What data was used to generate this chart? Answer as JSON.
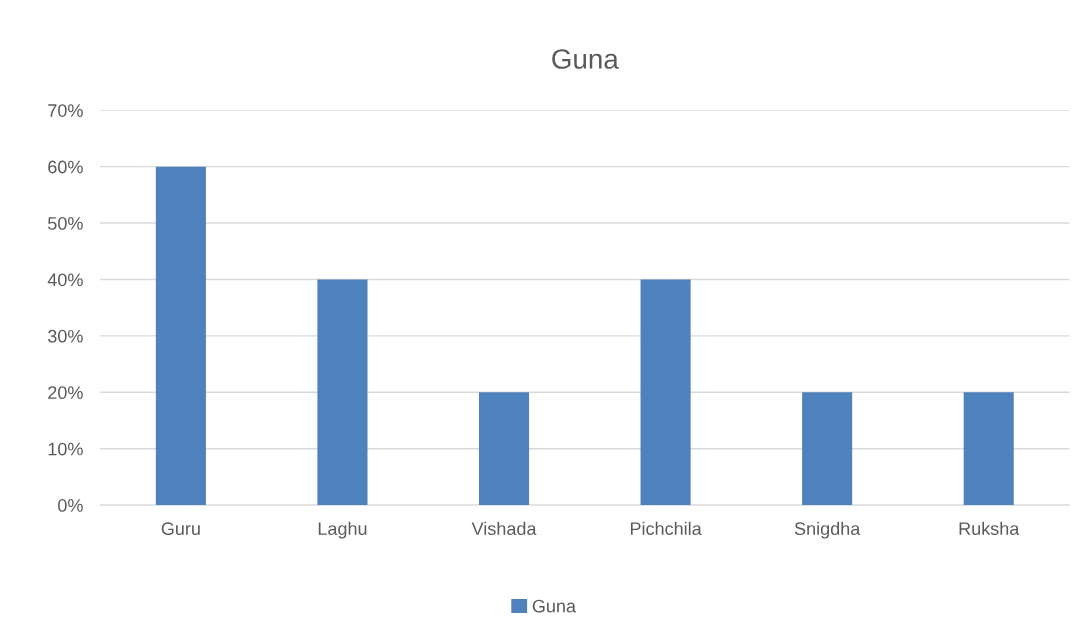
{
  "chart_data": {
    "type": "bar",
    "title": "Guna",
    "categories": [
      "Guru",
      "Laghu",
      "Vishada",
      "Pichchila",
      "Snigdha",
      "Ruksha"
    ],
    "series": [
      {
        "name": "Guna",
        "color": "#4f81bd",
        "values": [
          60,
          40,
          20,
          40,
          20,
          20
        ]
      }
    ],
    "ylim": [
      0,
      70
    ],
    "yticks": [
      {
        "value": 0,
        "label": "0%"
      },
      {
        "value": 10,
        "label": "10%"
      },
      {
        "value": 20,
        "label": "20%"
      },
      {
        "value": 30,
        "label": "30%"
      },
      {
        "value": 40,
        "label": "40%"
      },
      {
        "value": 50,
        "label": "50%"
      },
      {
        "value": 60,
        "label": "60%"
      },
      {
        "value": 70,
        "label": "70%"
      }
    ],
    "grid": "y",
    "legend": "bottom"
  }
}
